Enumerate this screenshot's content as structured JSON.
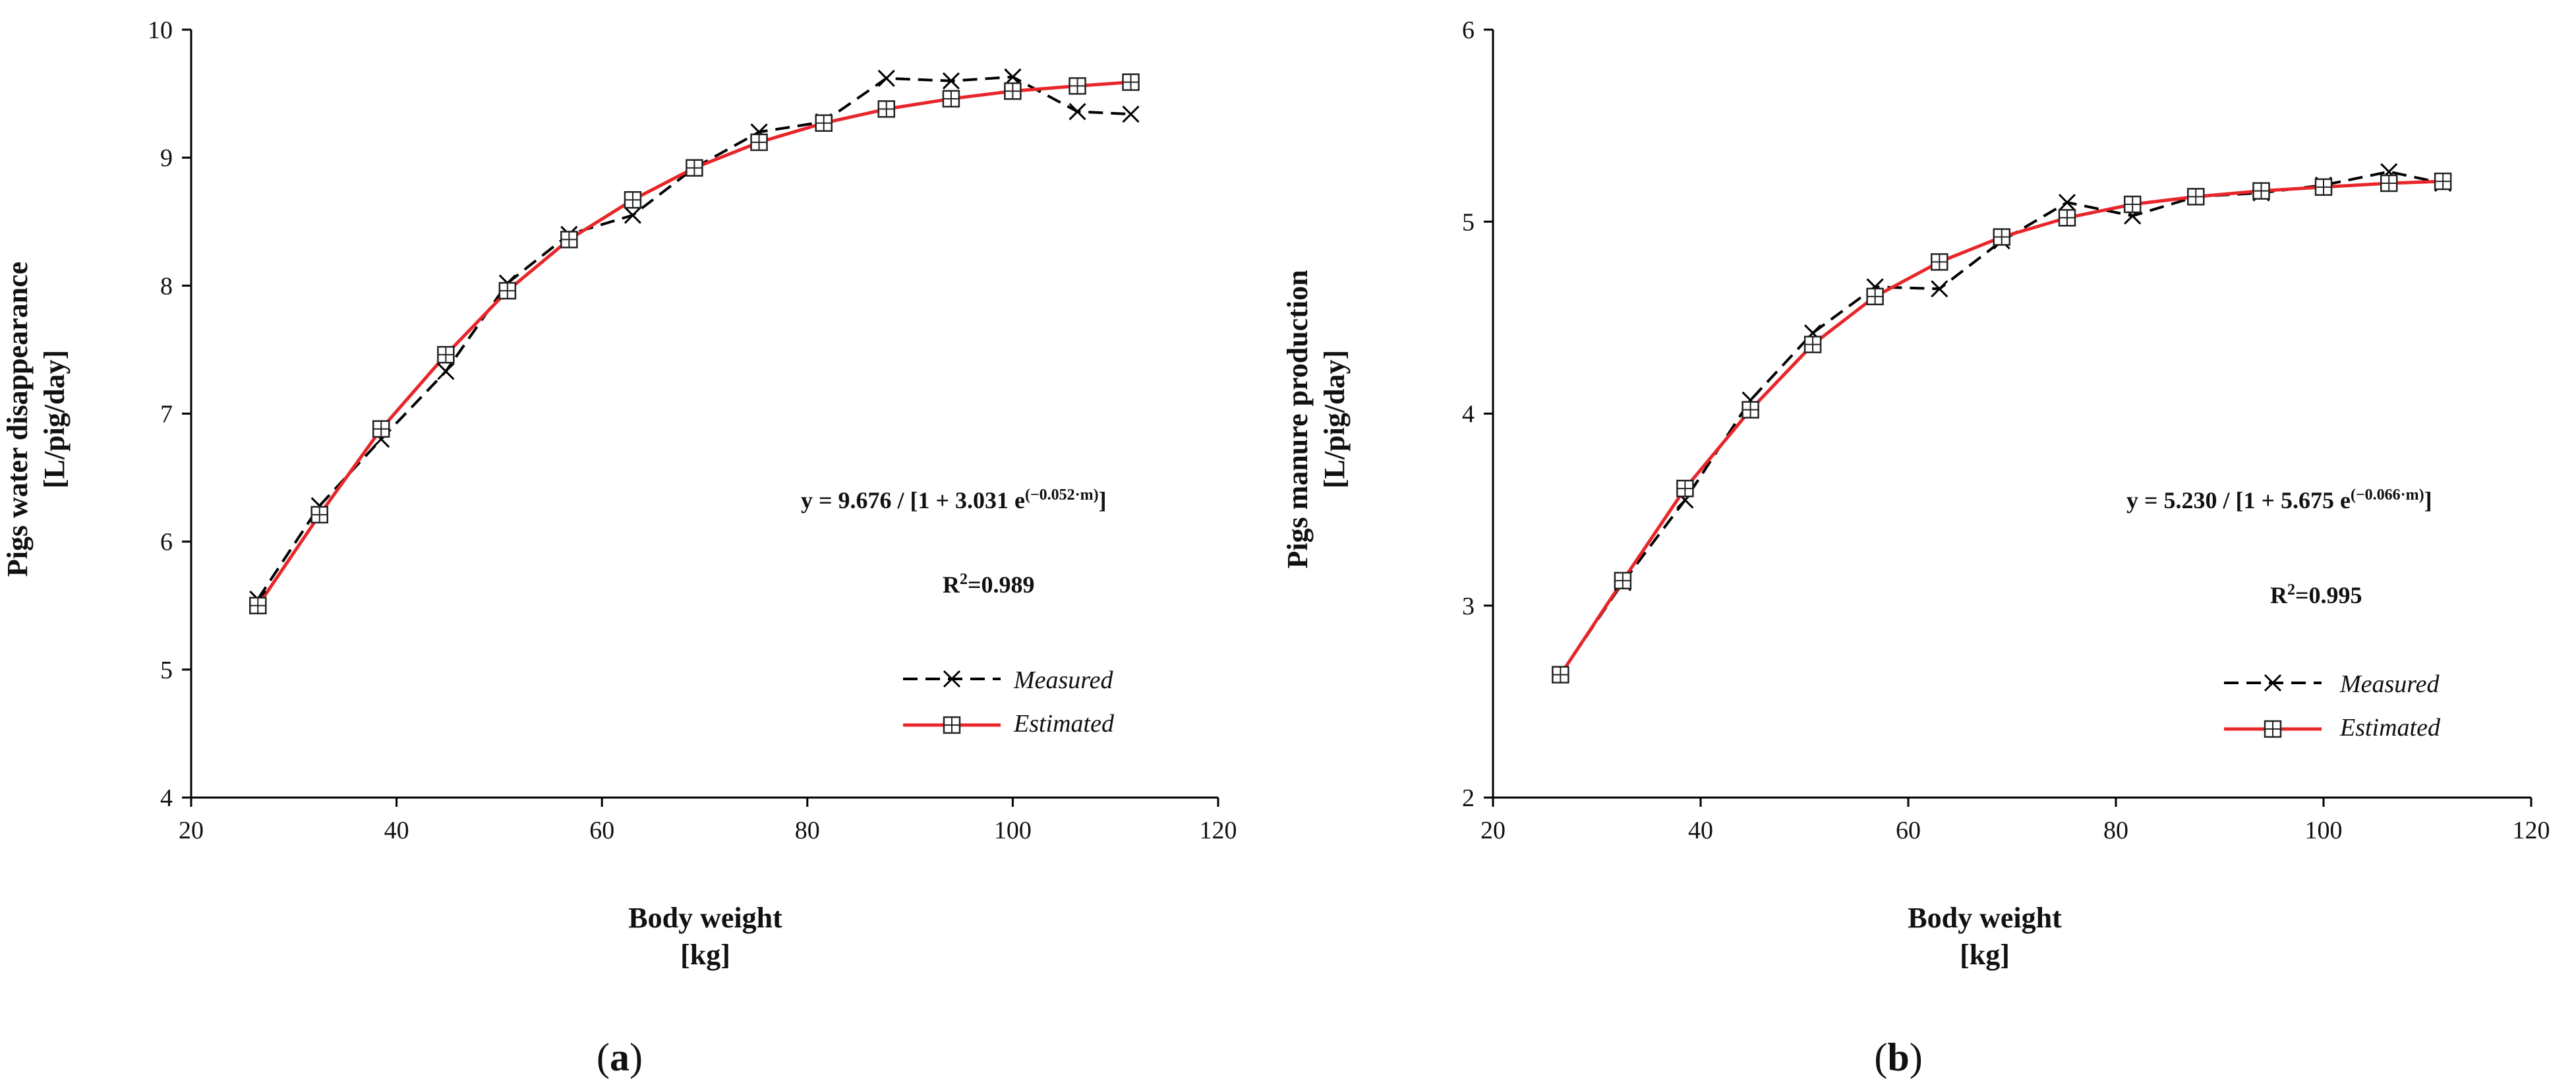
{
  "chart_data": [
    {
      "panel_label": "a",
      "type": "line",
      "xlabel_line1": "Body weight",
      "xlabel_line2": "[kg]",
      "ylabel_line1": "Pigs water disappearance",
      "ylabel_line2": "[L/pig/day]",
      "xlim": [
        20,
        120
      ],
      "ylim": [
        4,
        10
      ],
      "xticks": [
        20,
        40,
        60,
        80,
        100,
        120
      ],
      "yticks": [
        4,
        5,
        6,
        7,
        8,
        9,
        10
      ],
      "equation_prefix": "y = 9.676 / [1 + 3.031 e",
      "equation_exponent": "(−0.052·m)",
      "equation_suffix": "]",
      "r2_prefix": "R",
      "r2_sup": "2",
      "r2_value": "=0.989",
      "legend_position": "lower-right",
      "series": [
        {
          "name": "Measured",
          "style": "dashed",
          "marker": "x",
          "color": "#000000",
          "x": [
            26.5,
            32.5,
            38.5,
            44.8,
            50.8,
            56.8,
            63,
            69,
            75.3,
            81.6,
            87.7,
            94,
            100,
            106.3,
            111.5
          ],
          "y": [
            5.55,
            6.28,
            6.8,
            7.33,
            8.02,
            8.4,
            8.55,
            8.92,
            9.2,
            9.28,
            9.62,
            9.6,
            9.63,
            9.36,
            9.34
          ]
        },
        {
          "name": "Estimated",
          "style": "solid",
          "marker": "square-plus",
          "color": "#e8262a",
          "x": [
            26.5,
            32.5,
            38.5,
            44.8,
            50.8,
            56.8,
            63,
            69,
            75.3,
            81.6,
            87.7,
            94,
            100,
            106.3,
            111.5
          ],
          "y": [
            5.5,
            6.21,
            6.88,
            7.46,
            7.96,
            8.36,
            8.67,
            8.92,
            9.12,
            9.27,
            9.38,
            9.46,
            9.52,
            9.56,
            9.59
          ]
        }
      ]
    },
    {
      "panel_label": "b",
      "type": "line",
      "xlabel_line1": "Body weight",
      "xlabel_line2": "[kg]",
      "ylabel_line1": "Pigs manure production",
      "ylabel_line2": "[L/pig/day]",
      "xlim": [
        20,
        120
      ],
      "ylim": [
        2,
        6
      ],
      "xticks": [
        20,
        40,
        60,
        80,
        100,
        120
      ],
      "yticks": [
        2,
        3,
        4,
        5,
        6
      ],
      "equation_prefix": "y = 5.230 / [1 + 5.675 e",
      "equation_exponent": "(−0.066·m)",
      "equation_suffix": "]",
      "r2_prefix": "R",
      "r2_sup": "2",
      "r2_value": "=0.995",
      "legend_position": "lower-right",
      "series": [
        {
          "name": "Measured",
          "style": "dashed",
          "marker": "x",
          "color": "#000000",
          "x": [
            26.5,
            32.5,
            38.5,
            44.8,
            50.8,
            56.8,
            63,
            69,
            75.3,
            81.6,
            87.7,
            94,
            100,
            106.3,
            111.5
          ],
          "y": [
            2.64,
            3.12,
            3.55,
            4.07,
            4.42,
            4.66,
            4.65,
            4.9,
            5.1,
            5.03,
            5.13,
            5.15,
            5.19,
            5.26,
            5.2
          ]
        },
        {
          "name": "Estimated",
          "style": "solid",
          "marker": "square-plus",
          "color": "#e8262a",
          "x": [
            26.5,
            32.5,
            38.5,
            44.8,
            50.8,
            56.8,
            63,
            69,
            75.3,
            81.6,
            87.7,
            94,
            100,
            106.3,
            111.5
          ],
          "y": [
            2.64,
            3.13,
            3.61,
            4.02,
            4.36,
            4.61,
            4.79,
            4.92,
            5.02,
            5.09,
            5.13,
            5.16,
            5.18,
            5.2,
            5.21
          ]
        }
      ]
    }
  ]
}
